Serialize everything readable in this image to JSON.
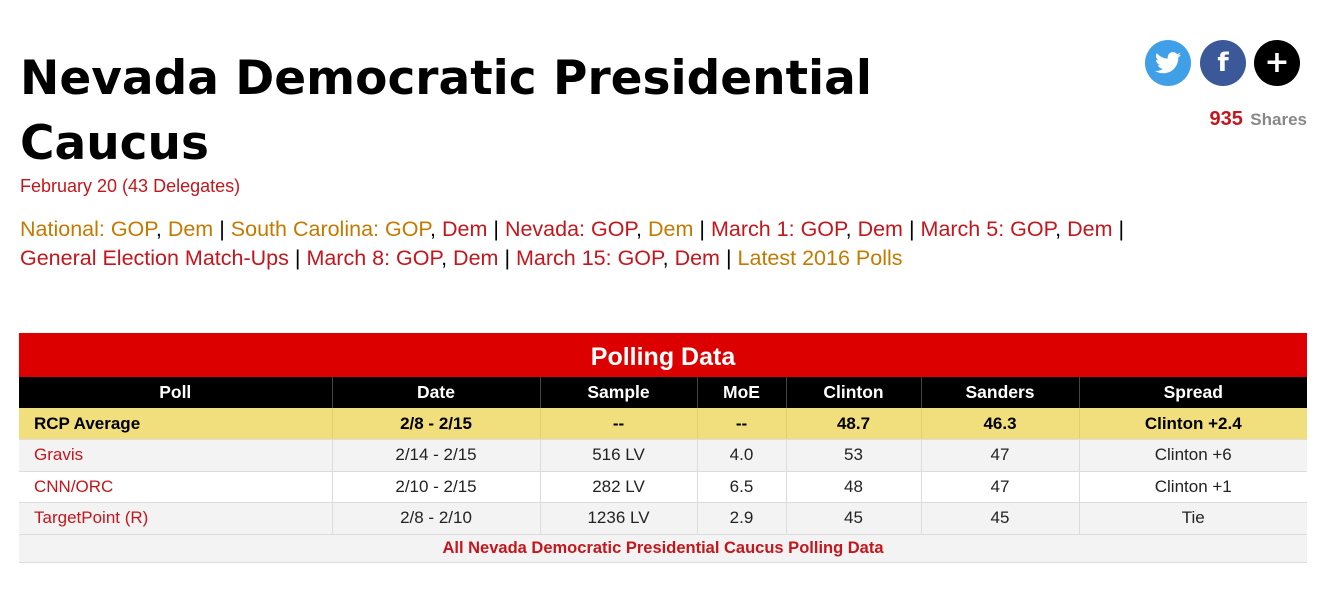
{
  "header": {
    "title": "Nevada Democratic Presidential Caucus",
    "subtitle": "February 20 (43 Delegates)"
  },
  "share": {
    "icons": [
      "twitter-icon",
      "facebook-icon",
      "plus-icon"
    ],
    "count": "935",
    "label": "Shares"
  },
  "nav": {
    "national_label": "National: GOP",
    "national_dem": "Dem",
    "sc_label": "South Carolina: GOP",
    "sc_dem": "Dem",
    "nv_label": "Nevada: GOP",
    "nv_dem": "Dem",
    "m1_label": "March 1: GOP",
    "m1_dem": "Dem",
    "m5_label": "March 5: GOP",
    "m5_dem": "Dem",
    "general": "General Election Match-Ups",
    "m8_label": "March 8: GOP",
    "m8_dem": "Dem",
    "m15_label": "March 15: GOP",
    "m15_dem": "Dem",
    "latest": "Latest 2016 Polls",
    "separator": "|",
    "comma": ","
  },
  "polling": {
    "title": "Polling Data",
    "columns": [
      "Poll",
      "Date",
      "Sample",
      "MoE",
      "Clinton",
      "Sanders",
      "Spread"
    ],
    "average": {
      "poll": "RCP Average",
      "date": "2/8 - 2/15",
      "sample": "--",
      "moe": "--",
      "clinton": "48.7",
      "sanders": "46.3",
      "spread": "Clinton +2.4"
    },
    "rows": [
      {
        "poll": "Gravis",
        "date": "2/14 - 2/15",
        "sample": "516 LV",
        "moe": "4.0",
        "clinton": "53",
        "sanders": "47",
        "spread": "Clinton +6"
      },
      {
        "poll": "CNN/ORC",
        "date": "2/10 - 2/15",
        "sample": "282 LV",
        "moe": "6.5",
        "clinton": "48",
        "sanders": "47",
        "spread": "Clinton +1"
      },
      {
        "poll": "TargetPoint (R)",
        "date": "2/8 - 2/10",
        "sample": "1236 LV",
        "moe": "2.9",
        "clinton": "45",
        "sanders": "45",
        "spread": "Tie"
      }
    ],
    "footer_link": "All Nevada Democratic Presidential Caucus Polling Data"
  },
  "colors": {
    "accent_red": "#c4161c",
    "table_title_red": "#dd0000",
    "nav_orange": "#c47a00",
    "average_row": "#f0df7c"
  }
}
